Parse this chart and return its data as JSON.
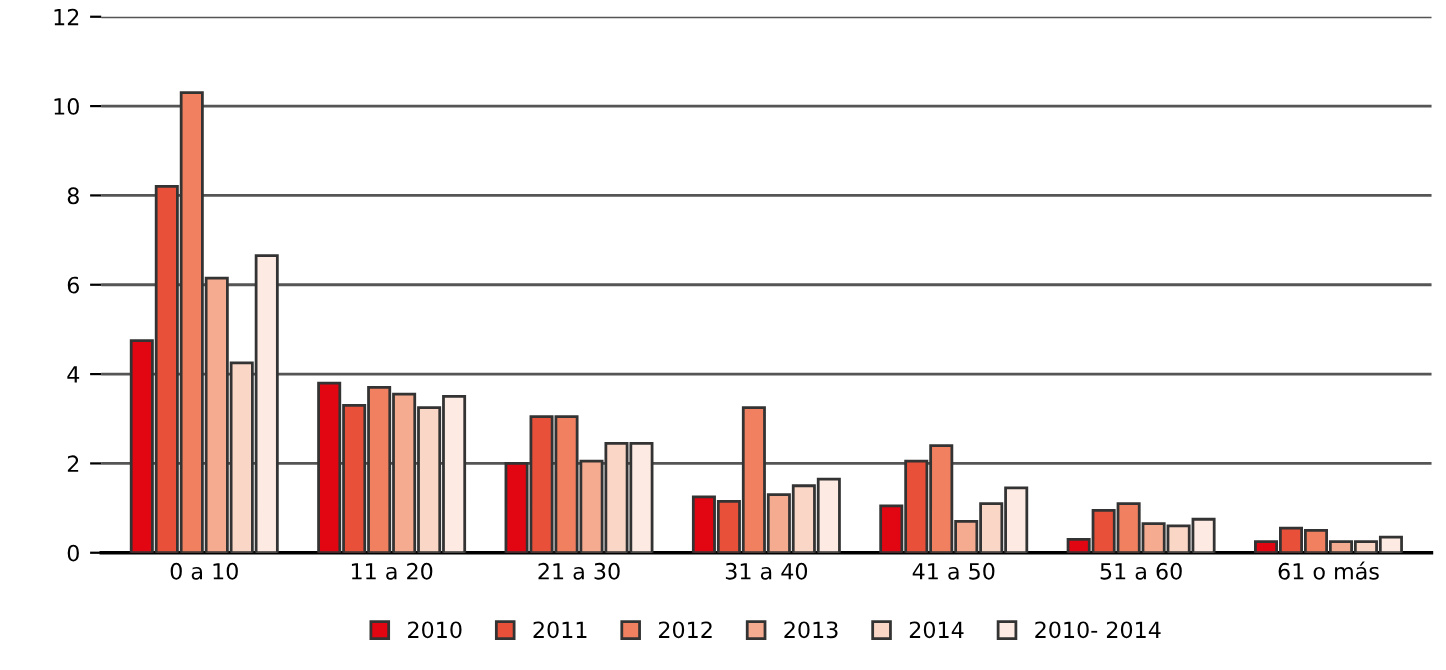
{
  "chart_data": {
    "type": "bar",
    "categories": [
      "0 a 10",
      "11 a 20",
      "21 a 30",
      "31 a 40",
      "41 a 50",
      "51 a 60",
      "61 o más"
    ],
    "series": [
      {
        "name": "2010",
        "color": "#e20613",
        "values": [
          4.75,
          3.8,
          2.0,
          1.25,
          1.05,
          0.3,
          0.25
        ]
      },
      {
        "name": "2011",
        "color": "#e8503a",
        "values": [
          8.2,
          3.3,
          3.05,
          1.15,
          2.05,
          0.95,
          0.55
        ]
      },
      {
        "name": "2012",
        "color": "#f08060",
        "values": [
          10.3,
          3.7,
          3.05,
          3.25,
          2.4,
          1.1,
          0.5
        ]
      },
      {
        "name": "2013",
        "color": "#f5ab90",
        "values": [
          6.15,
          3.55,
          2.05,
          1.3,
          0.7,
          0.65,
          0.25
        ]
      },
      {
        "name": "2014",
        "color": "#f9d6c6",
        "values": [
          4.25,
          3.25,
          2.45,
          1.5,
          1.1,
          0.6,
          0.25
        ]
      },
      {
        "name": "2010- 2014",
        "color": "#fdeae2",
        "values": [
          6.65,
          3.5,
          2.45,
          1.65,
          1.45,
          0.75,
          0.35
        ]
      }
    ],
    "ylim": [
      0,
      12
    ],
    "yticks": [
      0,
      2,
      4,
      6,
      8,
      10,
      12
    ],
    "grid": "y",
    "legend": "bottom"
  }
}
